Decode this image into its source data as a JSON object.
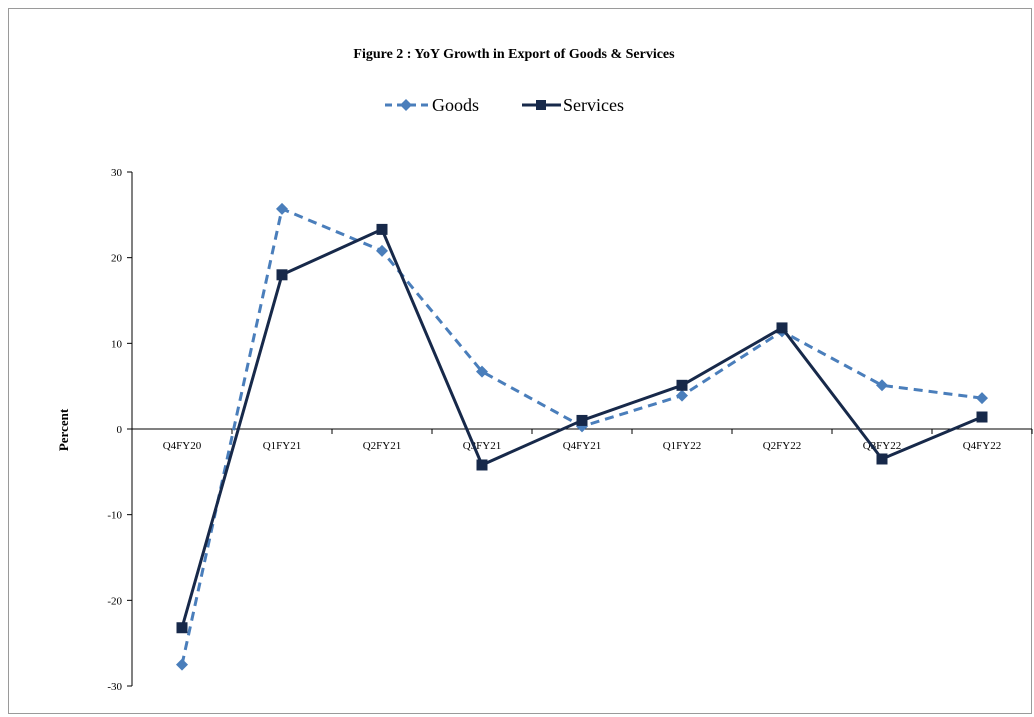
{
  "chart_data": {
    "type": "line",
    "title": "Figure 2 : YoY Growth in Export  of Goods & Services",
    "xlabel": "",
    "ylabel": "Percent",
    "categories": [
      "Q4FY20",
      "Q1FY21",
      "Q2FY21",
      "Q3FY21",
      "Q4FY21",
      "Q1FY22",
      "Q2FY22",
      "Q3FY22",
      "Q4FY22"
    ],
    "ylim": [
      -30,
      30
    ],
    "yticks": [
      30,
      20,
      10,
      0,
      -10,
      -20,
      -30
    ],
    "grid": false,
    "legend_position": "top",
    "series": [
      {
        "name": "Goods",
        "values": [
          -27.5,
          25.7,
          20.8,
          6.7,
          0.3,
          3.9,
          11.4,
          5.1,
          3.6
        ],
        "color": "#4a7ebb",
        "style": "dashed",
        "marker": "diamond"
      },
      {
        "name": "Services",
        "values": [
          -23.2,
          18.0,
          23.3,
          -4.2,
          1.0,
          5.1,
          11.8,
          -3.5,
          1.4
        ],
        "color": "#17294a",
        "style": "solid",
        "marker": "square"
      }
    ]
  }
}
